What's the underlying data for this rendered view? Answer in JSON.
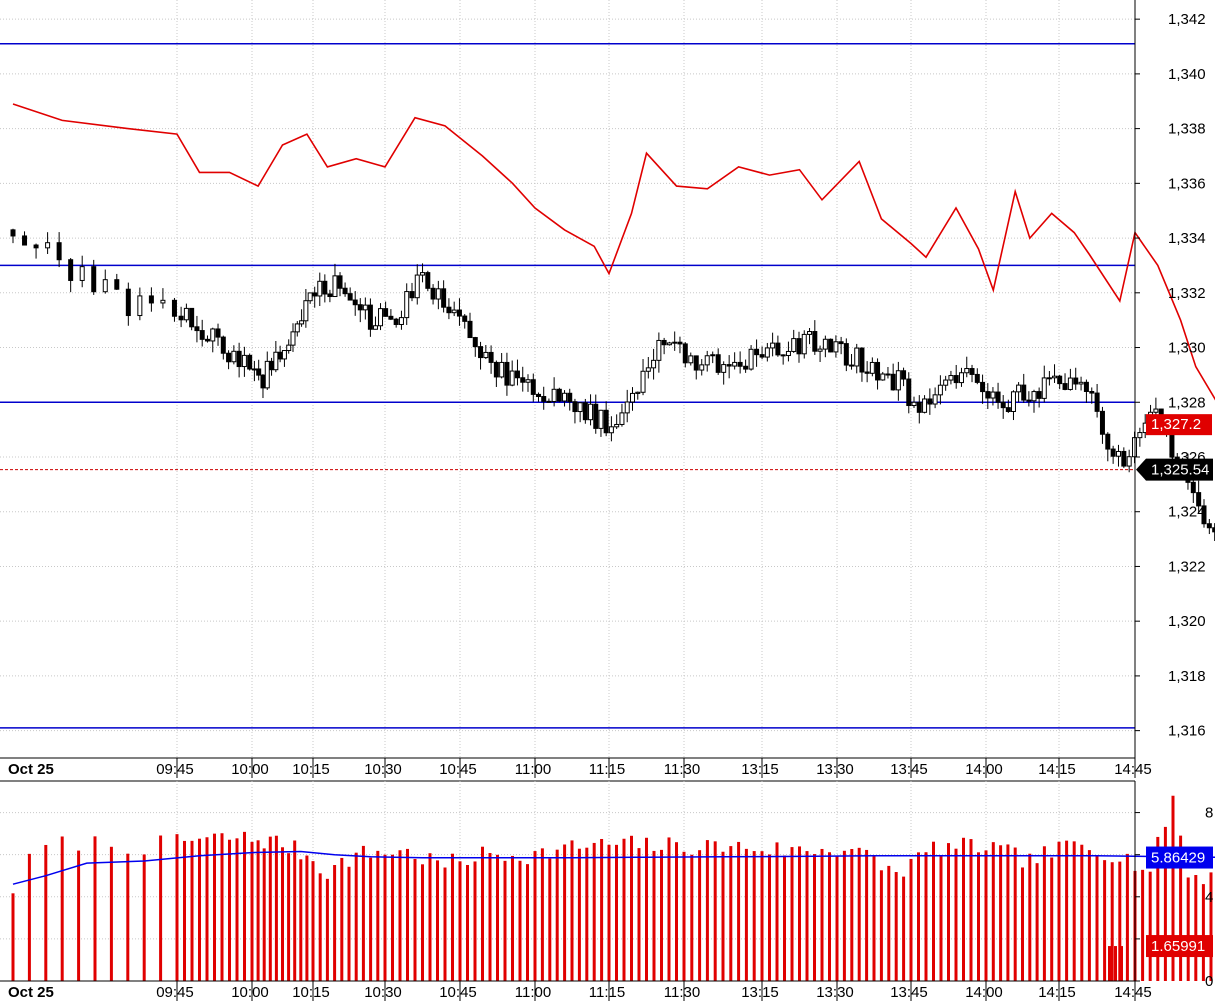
{
  "chart_data": [
    {
      "type": "candlestick",
      "panel": "price",
      "x_labels": [
        "Oct 25",
        "09:45",
        "10:00",
        "10:15",
        "10:30",
        "10:45",
        "11:00",
        "11:15",
        "11:30",
        "13:15",
        "13:30",
        "13:45",
        "14:00",
        "14:15",
        "14:45"
      ],
      "ylim": [
        1315,
        1342.7
      ],
      "y_ticks": [
        1316,
        1318,
        1320,
        1322,
        1324,
        1326,
        1328,
        1330,
        1332,
        1334,
        1336,
        1338,
        1340,
        1342
      ],
      "y_tick_labels": [
        "1,316",
        "1,318",
        "1,320",
        "1,322",
        "1,324",
        "1,326",
        "1,328",
        "1,330",
        "1,332",
        "1,334",
        "1,336",
        "1,338",
        "1,340",
        "1,342"
      ],
      "grid": true,
      "horizontal_lines": [
        {
          "value": 1341.1,
          "color": "#0000cc"
        },
        {
          "value": 1333.0,
          "color": "#0000cc"
        },
        {
          "value": 1328.0,
          "color": "#0000cc"
        },
        {
          "value": 1316.1,
          "color": "#0000cc"
        }
      ],
      "current_price_line": {
        "value": 1325.54,
        "color": "#cc0000"
      },
      "close_path": [
        [
          0,
          1334.3
        ],
        [
          0.3,
          1333.0
        ],
        [
          0.7,
          1331.6
        ],
        [
          1.0,
          1331.5
        ],
        [
          1.4,
          1330.4
        ],
        [
          1.8,
          1329.6
        ],
        [
          2.2,
          1328.9
        ],
        [
          2.6,
          1330.2
        ],
        [
          3.0,
          1331.8
        ],
        [
          3.3,
          1332.4
        ],
        [
          3.6,
          1331.2
        ],
        [
          3.9,
          1331.0
        ],
        [
          4.2,
          1331.2
        ],
        [
          4.5,
          1332.6
        ],
        [
          4.8,
          1331.6
        ],
        [
          5.2,
          1330.1
        ],
        [
          5.6,
          1328.9
        ],
        [
          6.0,
          1328.5
        ],
        [
          6.5,
          1327.9
        ],
        [
          7.0,
          1327.2
        ],
        [
          7.4,
          1328.7
        ],
        [
          7.7,
          1330.3
        ],
        [
          8.0,
          1329.8
        ],
        [
          8.3,
          1329.4
        ],
        [
          8.7,
          1329.4
        ],
        [
          9.0,
          1329.6
        ],
        [
          9.4,
          1330.2
        ],
        [
          9.8,
          1330.1
        ],
        [
          10.2,
          1329.6
        ],
        [
          10.5,
          1329.3
        ],
        [
          10.9,
          1328.6
        ],
        [
          11.1,
          1327.5
        ],
        [
          11.4,
          1328.4
        ],
        [
          11.7,
          1329.3
        ],
        [
          12.2,
          1328.0
        ],
        [
          12.6,
          1328.4
        ],
        [
          13.1,
          1328.7
        ],
        [
          13.4,
          1328.3
        ],
        [
          13.6,
          1326.6
        ],
        [
          13.9,
          1325.9
        ],
        [
          14.2,
          1327.8
        ],
        [
          14.5,
          1326.2
        ],
        [
          14.8,
          1324.2
        ],
        [
          15.0,
          1323.3
        ],
        [
          15.2,
          1324.4
        ],
        [
          15.4,
          1324.9
        ]
      ],
      "series": [
        {
          "name": "",
          "color": "#e00000",
          "current_label": "1,327.2",
          "current_value": 1327.2,
          "points": [
            [
              0,
              1338.9
            ],
            [
              0.3,
              1338.3
            ],
            [
              0.7,
              1338.0
            ],
            [
              1.0,
              1337.8
            ],
            [
              1.3,
              1336.4
            ],
            [
              1.7,
              1336.4
            ],
            [
              2.1,
              1335.9
            ],
            [
              2.5,
              1337.4
            ],
            [
              2.9,
              1337.8
            ],
            [
              3.2,
              1336.6
            ],
            [
              3.6,
              1336.9
            ],
            [
              4.0,
              1336.6
            ],
            [
              4.4,
              1338.4
            ],
            [
              4.8,
              1338.1
            ],
            [
              5.3,
              1337.0
            ],
            [
              5.7,
              1336.0
            ],
            [
              6.0,
              1335.1
            ],
            [
              6.4,
              1334.3
            ],
            [
              6.8,
              1333.7
            ],
            [
              7.0,
              1332.7
            ],
            [
              7.3,
              1334.9
            ],
            [
              7.5,
              1337.1
            ],
            [
              7.9,
              1335.9
            ],
            [
              8.3,
              1335.8
            ],
            [
              8.7,
              1336.6
            ],
            [
              9.1,
              1336.3
            ],
            [
              9.5,
              1336.5
            ],
            [
              9.8,
              1335.4
            ],
            [
              10.3,
              1336.8
            ],
            [
              10.6,
              1334.7
            ],
            [
              11.0,
              1333.8
            ],
            [
              11.2,
              1333.3
            ],
            [
              11.6,
              1335.1
            ],
            [
              11.9,
              1333.6
            ],
            [
              12.1,
              1332.1
            ],
            [
              12.4,
              1335.7
            ],
            [
              12.6,
              1334.0
            ],
            [
              12.9,
              1334.9
            ],
            [
              13.2,
              1334.2
            ],
            [
              13.4,
              1333.4
            ],
            [
              13.8,
              1331.7
            ],
            [
              14.0,
              1334.2
            ],
            [
              14.3,
              1333.0
            ],
            [
              14.6,
              1331.0
            ],
            [
              14.8,
              1329.3
            ],
            [
              15.1,
              1327.9
            ],
            [
              15.3,
              1329.6
            ],
            [
              15.5,
              1327.2
            ]
          ]
        }
      ]
    },
    {
      "type": "bar",
      "panel": "volume",
      "ylim": [
        0,
        9.5
      ],
      "y_ticks": [
        0,
        2,
        4,
        6,
        8
      ],
      "y_tick_labels": [
        "0",
        "",
        "4",
        "6",
        "8"
      ],
      "bars_color": "#e00000",
      "bar_count": 155,
      "bar_profile": [
        [
          0,
          4.4
        ],
        [
          0.15,
          6.3
        ],
        [
          0.4,
          6.6
        ],
        [
          0.8,
          6.4
        ],
        [
          1.2,
          6.7
        ],
        [
          1.8,
          6.8
        ],
        [
          2.4,
          6.6
        ],
        [
          2.9,
          6.0
        ],
        [
          3.2,
          5.2
        ],
        [
          3.6,
          6.0
        ],
        [
          4.2,
          6.2
        ],
        [
          4.8,
          5.5
        ],
        [
          5.3,
          6.0
        ],
        [
          6.0,
          6.0
        ],
        [
          6.6,
          6.4
        ],
        [
          7.2,
          6.5
        ],
        [
          7.9,
          6.4
        ],
        [
          8.6,
          6.4
        ],
        [
          9.4,
          6.2
        ],
        [
          10.2,
          6.3
        ],
        [
          10.8,
          5.1
        ],
        [
          11.3,
          6.3
        ],
        [
          12.0,
          6.4
        ],
        [
          12.6,
          5.7
        ],
        [
          13.2,
          6.5
        ],
        [
          13.8,
          6.0
        ],
        [
          14.2,
          5.2
        ],
        [
          14.5,
          8.8
        ],
        [
          14.7,
          5.0
        ],
        [
          15.0,
          5.0
        ],
        [
          15.4,
          5.0
        ]
      ],
      "series": [
        {
          "name": "",
          "color": "#0000ee",
          "current_label": "5.86429",
          "current_value": 5.86429,
          "points": [
            [
              0,
              4.6
            ],
            [
              0.2,
              5.0
            ],
            [
              0.45,
              5.6
            ],
            [
              0.8,
              5.7
            ],
            [
              1.3,
              5.95
            ],
            [
              2.0,
              6.1
            ],
            [
              2.8,
              6.15
            ],
            [
              3.3,
              6.0
            ],
            [
              3.8,
              5.9
            ],
            [
              4.5,
              5.85
            ],
            [
              5.5,
              5.85
            ],
            [
              6.5,
              5.85
            ],
            [
              7.5,
              5.88
            ],
            [
              8.5,
              5.9
            ],
            [
              9.5,
              5.92
            ],
            [
              10.5,
              5.95
            ],
            [
              11.5,
              5.95
            ],
            [
              12.5,
              5.95
            ],
            [
              13.5,
              5.95
            ],
            [
              14.5,
              5.9
            ],
            [
              15.4,
              5.86
            ]
          ]
        },
        {
          "name": "",
          "color": "#e00000",
          "current_label": "1.65991",
          "current_value": 1.65991,
          "points": []
        }
      ]
    }
  ],
  "price_axis": {
    "current_tag": {
      "label": "1,325.54",
      "color": "#000000"
    }
  }
}
